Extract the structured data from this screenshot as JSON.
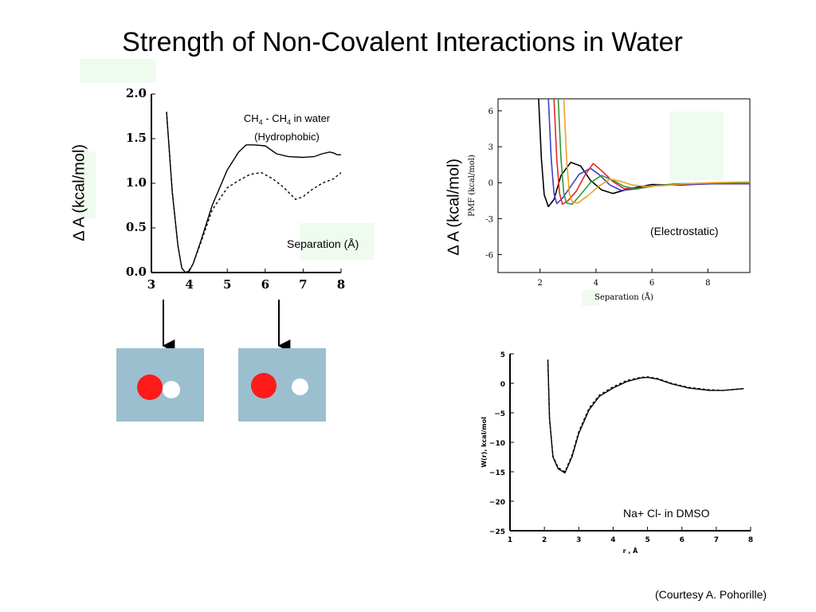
{
  "title": "Strength of Non-Covalent Interactions in Water",
  "shared": {
    "ylabel": "∆ A (kcal/mol)"
  },
  "courtesy": "(Courtesy A. Pohorille)",
  "colors": {
    "red_ball": "#ff1a1a",
    "white_ball": "#ffffff",
    "panel_bg": "#9bbfce",
    "highlight": "#f0fbf0"
  },
  "chart_data": [
    {
      "type": "line",
      "id": "hydrophobic",
      "label_line1": "CH",
      "label_sub": "4",
      "label_sep": " - CH",
      "label_sub2": "4",
      "label_tail": " in water",
      "label_line2": "(Hydrophobic)",
      "xlabel": "Separation (Å)",
      "ylabel": "∆ A (kcal/mol)",
      "xlim": [
        3,
        8
      ],
      "ylim": [
        0,
        2
      ],
      "xticks": [
        "3",
        "4",
        "5",
        "6",
        "7",
        "8"
      ],
      "yticks": [
        "0.0",
        "0.5",
        "1.0",
        "1.5",
        "2.0"
      ],
      "series": [
        {
          "style": "solid",
          "x": [
            3.4,
            3.55,
            3.7,
            3.8,
            3.9,
            4.0,
            4.1,
            4.3,
            4.6,
            5.0,
            5.3,
            5.5,
            5.7,
            6.0,
            6.3,
            6.6,
            7.0,
            7.3,
            7.5,
            7.7,
            7.8,
            7.9,
            8.0
          ],
          "y": [
            1.8,
            0.9,
            0.3,
            0.05,
            0.0,
            0.02,
            0.1,
            0.35,
            0.75,
            1.15,
            1.35,
            1.43,
            1.43,
            1.42,
            1.33,
            1.3,
            1.29,
            1.3,
            1.33,
            1.35,
            1.34,
            1.32,
            1.32
          ]
        },
        {
          "style": "dashed",
          "x": [
            3.4,
            3.55,
            3.7,
            3.8,
            3.9,
            4.0,
            4.1,
            4.3,
            4.6,
            5.0,
            5.3,
            5.6,
            5.9,
            6.2,
            6.5,
            6.8,
            7.0,
            7.2,
            7.5,
            7.8,
            8.0
          ],
          "y": [
            1.8,
            0.9,
            0.3,
            0.05,
            0.0,
            0.02,
            0.1,
            0.33,
            0.7,
            0.95,
            1.03,
            1.1,
            1.12,
            1.05,
            0.95,
            0.82,
            0.85,
            0.92,
            1.0,
            1.05,
            1.12
          ]
        }
      ]
    },
    {
      "type": "line",
      "id": "electrostatic",
      "label": "(Electrostatic)",
      "xlabel": "Separation (Å)",
      "ylabel": "PMF (kcal/mol)",
      "ylabel_outer": "∆ A (kcal/mol)",
      "xlim": [
        0.5,
        9.5
      ],
      "ylim": [
        -7.5,
        7
      ],
      "xticks": [
        "2",
        "4",
        "6",
        "8"
      ],
      "yticks": [
        "6",
        "3",
        "0",
        "-3",
        "-6"
      ],
      "series": [
        {
          "color": "#000000",
          "x": [
            1.95,
            2.05,
            2.15,
            2.3,
            2.5,
            2.75,
            3.1,
            3.45,
            3.8,
            4.2,
            4.6,
            5.2,
            6.0,
            7.0,
            8.0,
            9.5
          ],
          "y": [
            7,
            2,
            -1.0,
            -2.0,
            -1.4,
            0.6,
            1.7,
            1.4,
            0.2,
            -0.6,
            -0.9,
            -0.5,
            -0.15,
            -0.2,
            -0.1,
            -0.1
          ]
        },
        {
          "color": "#3a40c8",
          "x": [
            2.3,
            2.4,
            2.5,
            2.6,
            2.8,
            3.1,
            3.4,
            3.8,
            4.1,
            4.5,
            4.9,
            5.5,
            6.2,
            7.2,
            8.2,
            9.5
          ],
          "y": [
            7,
            2,
            -0.9,
            -1.75,
            -1.3,
            -0.3,
            0.7,
            1.2,
            0.7,
            -0.2,
            -0.65,
            -0.5,
            -0.2,
            -0.15,
            -0.1,
            -0.1
          ]
        },
        {
          "color": "#dd2a2a",
          "x": [
            2.5,
            2.6,
            2.7,
            2.8,
            3.0,
            3.3,
            3.6,
            3.9,
            4.2,
            4.6,
            5.0,
            5.6,
            6.3,
            7.3,
            8.3,
            9.5
          ],
          "y": [
            7,
            2,
            -0.9,
            -1.8,
            -1.5,
            -0.7,
            0.6,
            1.6,
            1.0,
            0.1,
            -0.5,
            -0.45,
            -0.2,
            -0.1,
            -0.05,
            -0.05
          ]
        },
        {
          "color": "#2e9a3a",
          "x": [
            2.65,
            2.75,
            2.85,
            2.95,
            3.15,
            3.45,
            3.8,
            4.2,
            4.6,
            5.0,
            5.4,
            6.0,
            6.8,
            7.8,
            8.8,
            9.5
          ],
          "y": [
            7,
            2,
            -0.9,
            -1.7,
            -1.8,
            -1.0,
            0.0,
            0.6,
            0.2,
            -0.3,
            -0.5,
            -0.3,
            -0.1,
            -0.05,
            0.0,
            0.0
          ]
        },
        {
          "color": "#f0a020",
          "x": [
            2.85,
            2.95,
            3.05,
            3.15,
            3.35,
            3.7,
            4.1,
            4.5,
            4.9,
            5.3,
            5.8,
            6.4,
            7.2,
            8.2,
            9.2,
            9.5
          ],
          "y": [
            7,
            2,
            -0.9,
            -1.6,
            -1.7,
            -1.1,
            -0.3,
            0.3,
            0.1,
            -0.2,
            -0.3,
            -0.25,
            -0.1,
            0.0,
            0.05,
            0.05
          ]
        }
      ]
    },
    {
      "type": "line",
      "id": "dmso",
      "label": "Na+   Cl- in DMSO",
      "xlabel": "r , Å",
      "ylabel": "W(r), kcal/mol",
      "xlim": [
        1,
        8
      ],
      "ylim": [
        -25,
        5
      ],
      "xticks": [
        "1",
        "2",
        "3",
        "4",
        "5",
        "6",
        "7",
        "8"
      ],
      "yticks": [
        "5",
        "0",
        "−5",
        "−10",
        "−15",
        "−20",
        "−25"
      ],
      "series": [
        {
          "style": "solid",
          "x": [
            2.1,
            2.15,
            2.25,
            2.4,
            2.6,
            2.8,
            3.0,
            3.3,
            3.6,
            4.0,
            4.4,
            4.8,
            5.0,
            5.3,
            5.7,
            6.2,
            6.8,
            7.2,
            7.6,
            7.8
          ],
          "y": [
            4,
            -6,
            -12.5,
            -14.5,
            -15.2,
            -12.5,
            -8.5,
            -4.5,
            -2.2,
            -0.8,
            0.3,
            0.9,
            1.0,
            0.7,
            -0.1,
            -0.8,
            -1.2,
            -1.2,
            -1.0,
            -0.9
          ]
        },
        {
          "style": "dashed",
          "x": [
            2.1,
            2.15,
            2.25,
            2.4,
            2.6,
            2.8,
            3.0,
            3.3,
            3.6,
            4.0,
            4.4,
            4.8,
            5.0,
            5.3,
            5.7,
            6.2,
            6.8,
            7.2,
            7.6,
            7.8
          ],
          "y": [
            4,
            -6,
            -12.3,
            -14.3,
            -15.0,
            -12.2,
            -8.2,
            -4.2,
            -2.0,
            -0.6,
            0.5,
            1.0,
            1.1,
            0.8,
            0.0,
            -0.7,
            -1.1,
            -1.2,
            -1.0,
            -0.9
          ]
        }
      ]
    }
  ]
}
